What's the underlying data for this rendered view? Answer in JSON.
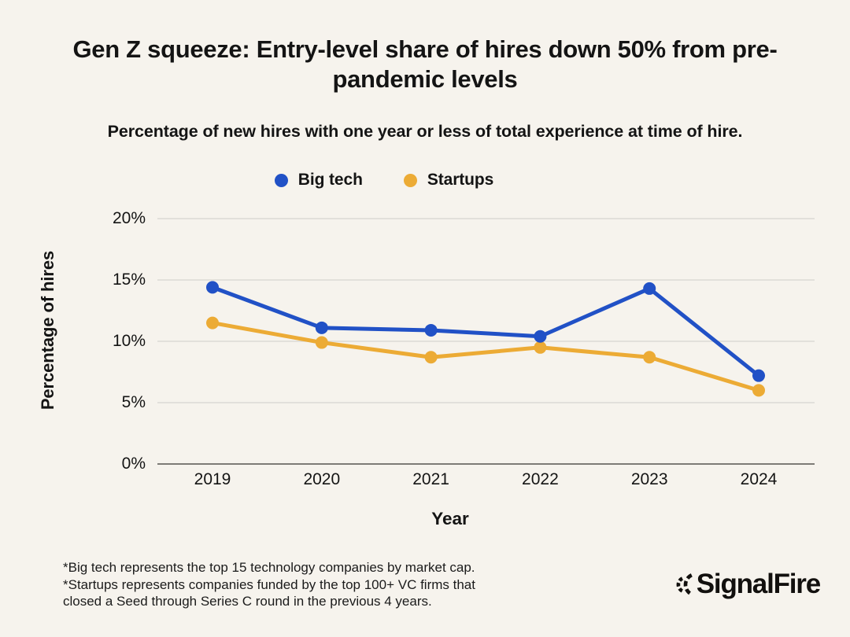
{
  "page": {
    "background": "#f6f3ed",
    "text_color": "#141414"
  },
  "header": {
    "title": "Gen Z squeeze: Entry-level share of hires down 50% from pre-pandemic levels",
    "subtitle": "Percentage of new hires with one year or less of total experience at time of hire."
  },
  "chart_data": {
    "type": "line",
    "title": "Gen Z squeeze: Entry-level share of hires down 50% from pre-pandemic levels",
    "subtitle": "Percentage of new hires with one year or less of total experience at time of hire.",
    "categories": [
      "2019",
      "2020",
      "2021",
      "2022",
      "2023",
      "2024"
    ],
    "series": [
      {
        "name": "Big tech",
        "color": "#2151c6",
        "values": [
          14.4,
          11.1,
          10.9,
          10.4,
          14.3,
          7.2
        ]
      },
      {
        "name": "Startups",
        "color": "#ecab35",
        "values": [
          11.5,
          9.9,
          8.7,
          9.5,
          8.7,
          6.0
        ]
      }
    ],
    "xlabel": "Year",
    "ylabel": "Percentage of hires",
    "ylim": [
      0,
      20
    ],
    "yticks": [
      0,
      5,
      10,
      15,
      20
    ],
    "ytick_suffix": "%",
    "grid": "horizontal",
    "grid_color": "#dcdad5",
    "axis_color": "#7d7b76",
    "legend_position": "top",
    "marker": "circle"
  },
  "footnote": {
    "text": "*Big tech represents the top 15 technology companies by market cap.\n*Startups represents companies funded by the top 100+ VC firms that\nclosed a Seed through Series C round in the previous 4 years."
  },
  "logo": {
    "text": "SignalFire"
  }
}
